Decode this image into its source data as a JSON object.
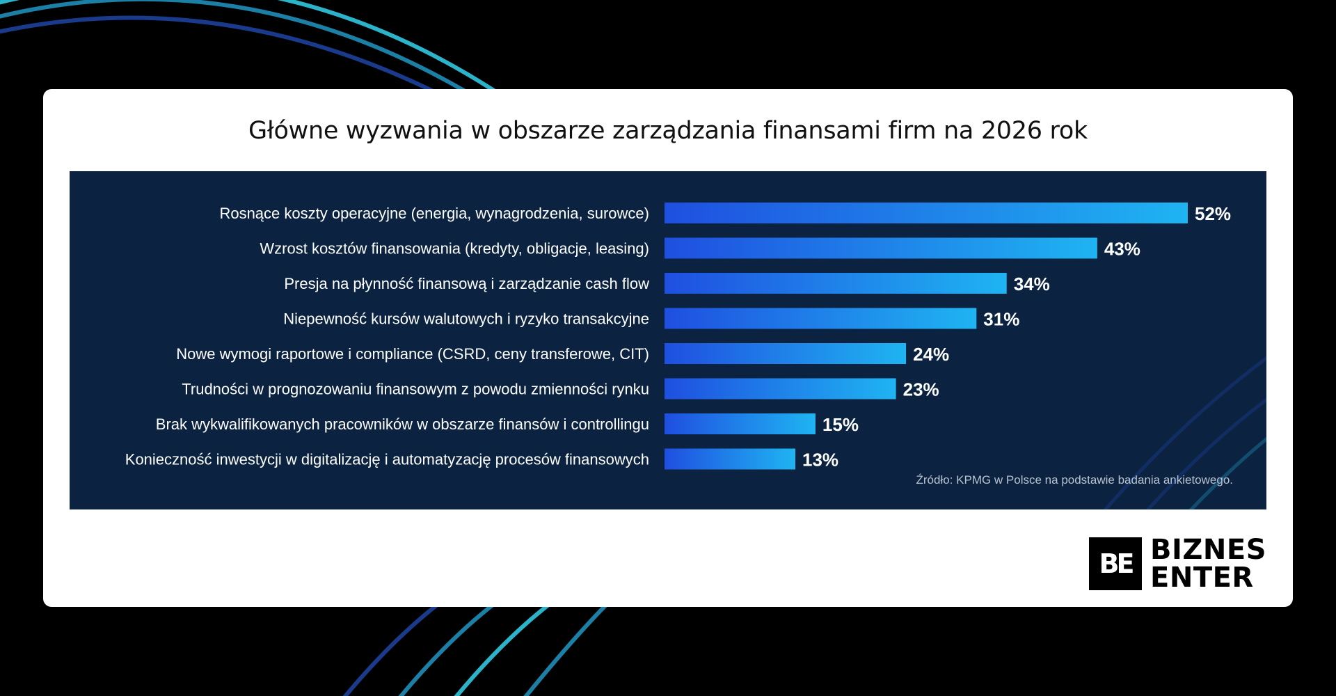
{
  "card": {
    "title": "Główne wyzwania w obszarze zarządzania finansami firm na 2026 rok",
    "source_note": "Źródło: KPMG w Polsce na podstawie badania ankietowego."
  },
  "logo": {
    "mark": "BE",
    "line1": "BIZNES",
    "line2": "ENTER"
  },
  "colors": {
    "page_background": "#000000",
    "card_background": "#ffffff",
    "chart_background": "#0b2340",
    "bar_gradient_start": "#1f4fe0",
    "bar_gradient_end": "#1fb4f2",
    "arc_colors": [
      "#1a3a8c",
      "#1b7fa6",
      "#2bb3c9"
    ]
  },
  "chart_data": {
    "type": "bar",
    "orientation": "horizontal",
    "value_format": "percent",
    "categories": [
      "Rosnące koszty operacyjne (energia, wynagrodzenia, surowce)",
      "Wzrost kosztów finansowania (kredyty, obligacje, leasing)",
      "Presja na płynność finansową i zarządzanie cash flow",
      "Niepewność kursów walutowych i ryzyko transakcyjne",
      "Nowe wymogi raportowe i compliance (CSRD, ceny transferowe, CIT)",
      "Trudności w prognozowaniu finansowym z powodu zmienności rynku",
      "Brak wykwalifikowanych pracowników w obszarze finansów i controllingu",
      "Konieczność inwestycji w digitalizację i automatyzację procesów finansowych"
    ],
    "values": [
      52,
      43,
      34,
      31,
      24,
      23,
      15,
      13
    ],
    "value_labels": [
      "52%",
      "43%",
      "34%",
      "31%",
      "24%",
      "23%",
      "15%",
      "13%"
    ],
    "grid": false,
    "legend": "none"
  }
}
